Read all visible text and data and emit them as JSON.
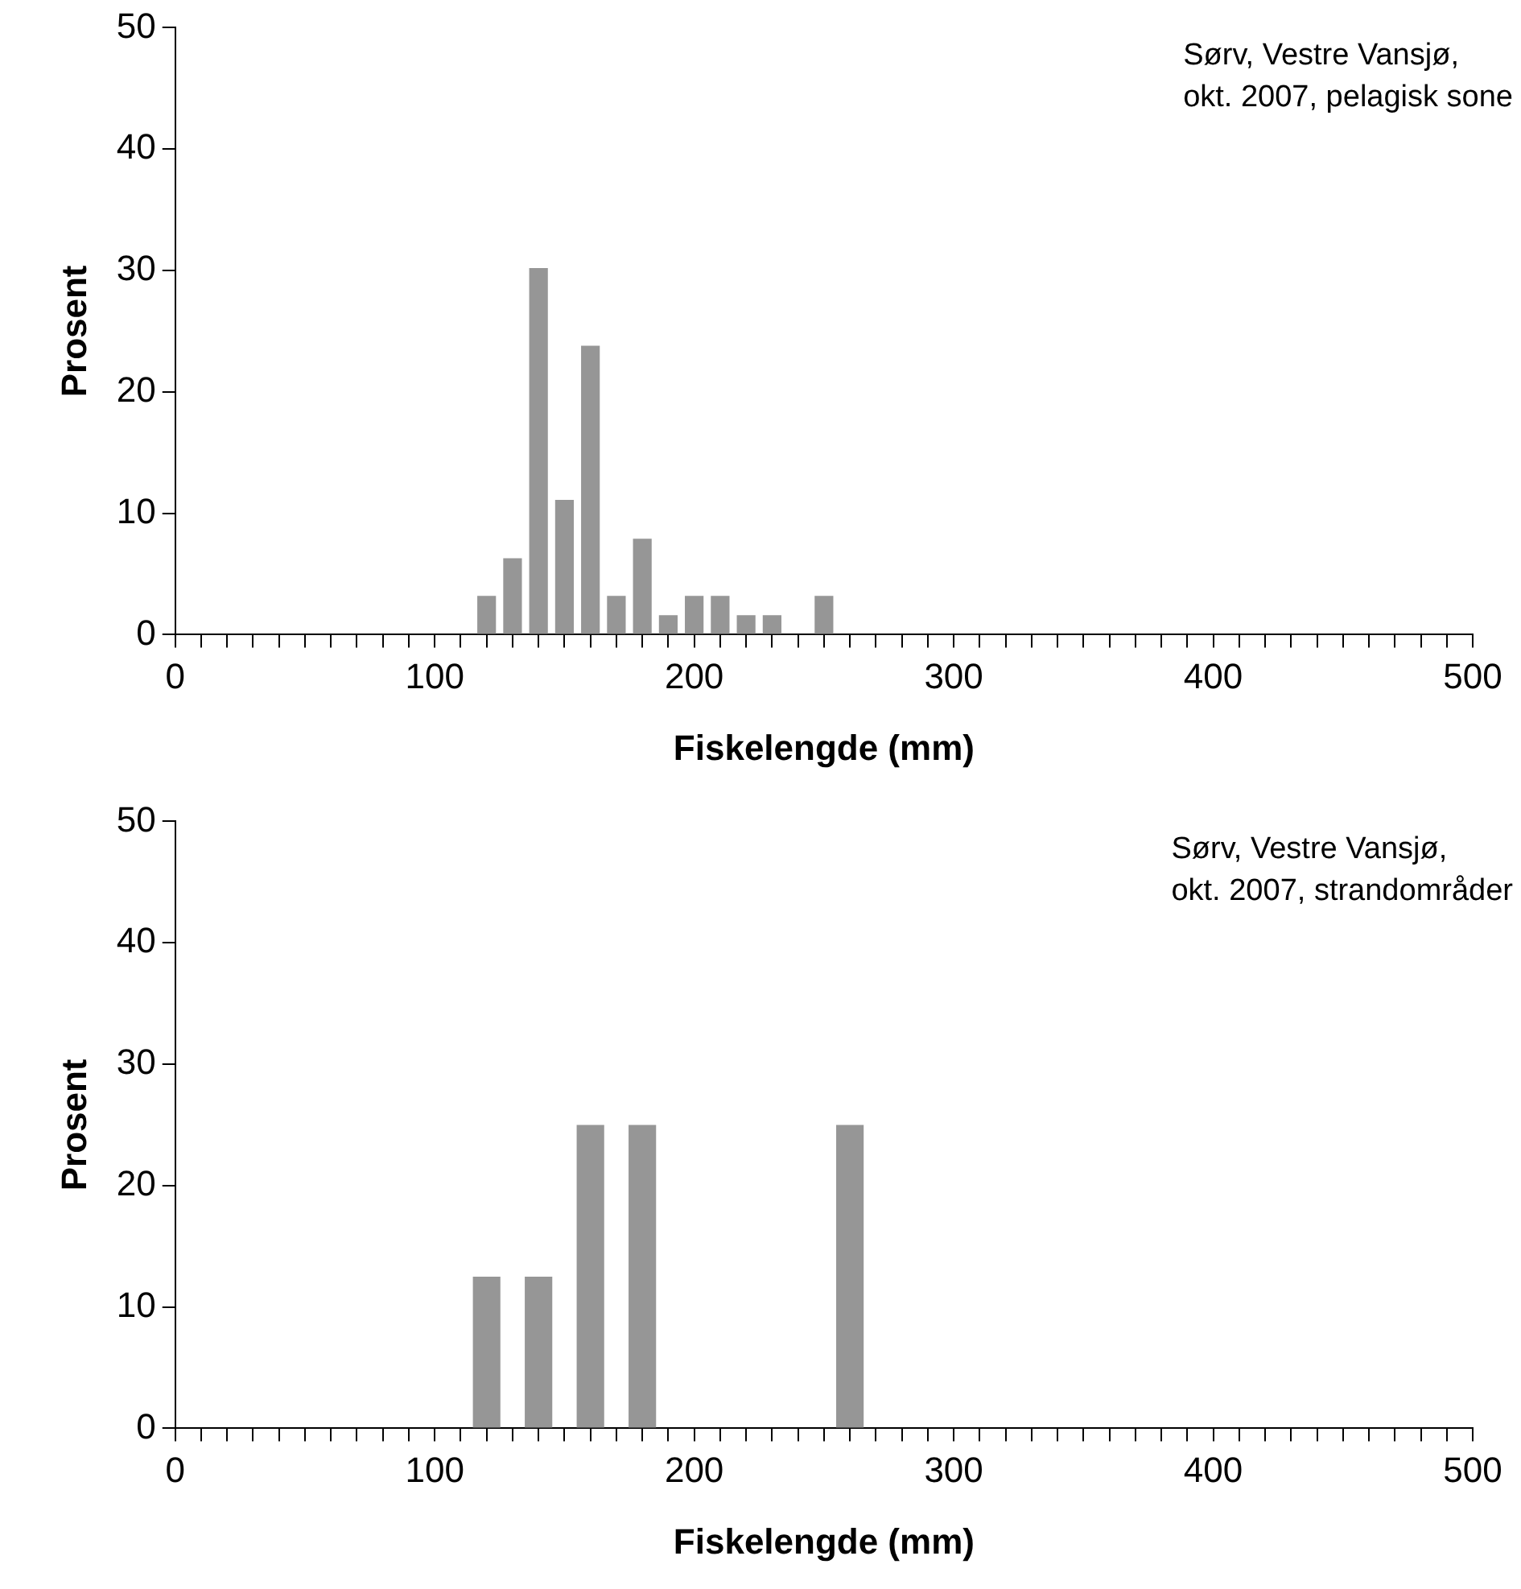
{
  "chart_data": [
    {
      "type": "bar",
      "x": [
        120,
        130,
        140,
        150,
        160,
        170,
        180,
        190,
        200,
        210,
        220,
        230,
        250
      ],
      "values": [
        3.2,
        6.3,
        30.2,
        11.1,
        23.8,
        3.2,
        7.9,
        1.6,
        3.2,
        3.2,
        1.6,
        1.6,
        3.2
      ],
      "color": "#969696",
      "xlabel": "Fiskelengde (mm)",
      "ylabel": "Prosent",
      "xlim": [
        0,
        500
      ],
      "ylim": [
        0,
        50
      ],
      "yticks": [
        0,
        10,
        20,
        30,
        40,
        50
      ],
      "xticks": [
        0,
        {
          "value": 10,
          "label": null
        },
        {
          "value": 20,
          "label": null
        },
        {
          "value": 30,
          "label": null
        },
        {
          "value": 40,
          "label": null
        },
        {
          "value": 50,
          "label": null
        },
        {
          "value": 60,
          "label": null
        },
        {
          "value": 70,
          "label": null
        },
        {
          "value": 80,
          "label": null
        },
        {
          "value": 90,
          "label": null
        },
        100,
        {
          "value": 110,
          "label": null
        },
        {
          "value": 120,
          "label": null
        },
        {
          "value": 130,
          "label": null
        },
        {
          "value": 140,
          "label": null
        },
        {
          "value": 150,
          "label": null
        },
        {
          "value": 160,
          "label": null
        },
        {
          "value": 170,
          "label": null
        },
        {
          "value": 180,
          "label": null
        },
        {
          "value": 190,
          "label": null
        },
        200,
        {
          "value": 210,
          "label": null
        },
        {
          "value": 220,
          "label": null
        },
        {
          "value": 230,
          "label": null
        },
        {
          "value": 240,
          "label": null
        },
        {
          "value": 250,
          "label": null
        },
        {
          "value": 260,
          "label": null
        },
        {
          "value": 270,
          "label": null
        },
        {
          "value": 280,
          "label": null
        },
        {
          "value": 290,
          "label": null
        },
        300,
        {
          "value": 310,
          "label": null
        },
        {
          "value": 320,
          "label": null
        },
        {
          "value": 330,
          "label": null
        },
        {
          "value": 340,
          "label": null
        },
        {
          "value": 350,
          "label": null
        },
        {
          "value": 360,
          "label": null
        },
        {
          "value": 370,
          "label": null
        },
        {
          "value": 380,
          "label": null
        },
        {
          "value": 390,
          "label": null
        },
        400,
        {
          "value": 410,
          "label": null
        },
        {
          "value": 420,
          "label": null
        },
        {
          "value": 430,
          "label": null
        },
        {
          "value": 440,
          "label": null
        },
        {
          "value": 450,
          "label": null
        },
        {
          "value": 460,
          "label": null
        },
        {
          "value": 470,
          "label": null
        },
        {
          "value": 480,
          "label": null
        },
        {
          "value": 490,
          "label": null
        },
        500
      ],
      "annotations": [
        "Sørv, Vestre Vansjø,\nokt. 2007, pelagisk sone"
      ]
    },
    {
      "type": "bar",
      "x": [
        120,
        140,
        160,
        180,
        260
      ],
      "values": [
        12.5,
        12.5,
        25,
        25,
        25
      ],
      "color": "#969696",
      "xlabel": "Fiskelengde (mm)",
      "ylabel": "Prosent",
      "xlim": [
        0,
        500
      ],
      "ylim": [
        0,
        50
      ],
      "yticks": [
        0,
        10,
        20,
        30,
        40,
        50
      ],
      "xticks": [
        0,
        {
          "value": 10,
          "label": null
        },
        {
          "value": 20,
          "label": null
        },
        {
          "value": 30,
          "label": null
        },
        {
          "value": 40,
          "label": null
        },
        {
          "value": 50,
          "label": null
        },
        {
          "value": 60,
          "label": null
        },
        {
          "value": 70,
          "label": null
        },
        {
          "value": 80,
          "label": null
        },
        {
          "value": 90,
          "label": null
        },
        100,
        {
          "value": 110,
          "label": null
        },
        {
          "value": 120,
          "label": null
        },
        {
          "value": 130,
          "label": null
        },
        {
          "value": 140,
          "label": null
        },
        {
          "value": 150,
          "label": null
        },
        {
          "value": 160,
          "label": null
        },
        {
          "value": 170,
          "label": null
        },
        {
          "value": 180,
          "label": null
        },
        {
          "value": 190,
          "label": null
        },
        200,
        {
          "value": 210,
          "label": null
        },
        {
          "value": 220,
          "label": null
        },
        {
          "value": 230,
          "label": null
        },
        {
          "value": 240,
          "label": null
        },
        {
          "value": 250,
          "label": null
        },
        {
          "value": 260,
          "label": null
        },
        {
          "value": 270,
          "label": null
        },
        {
          "value": 280,
          "label": null
        },
        {
          "value": 290,
          "label": null
        },
        300,
        {
          "value": 310,
          "label": null
        },
        {
          "value": 320,
          "label": null
        },
        {
          "value": 330,
          "label": null
        },
        {
          "value": 340,
          "label": null
        },
        {
          "value": 350,
          "label": null
        },
        {
          "value": 360,
          "label": null
        },
        {
          "value": 370,
          "label": null
        },
        {
          "value": 380,
          "label": null
        },
        {
          "value": 390,
          "label": null
        },
        400,
        {
          "value": 410,
          "label": null
        },
        {
          "value": 420,
          "label": null
        },
        {
          "value": 430,
          "label": null
        },
        {
          "value": 440,
          "label": null
        },
        {
          "value": 450,
          "label": null
        },
        {
          "value": 460,
          "label": null
        },
        {
          "value": 470,
          "label": null
        },
        {
          "value": 480,
          "label": null
        },
        {
          "value": 490,
          "label": null
        },
        500
      ],
      "annotations": [
        "Sørv, Vestre Vansjø,\nokt. 2007, strandområder"
      ]
    }
  ]
}
